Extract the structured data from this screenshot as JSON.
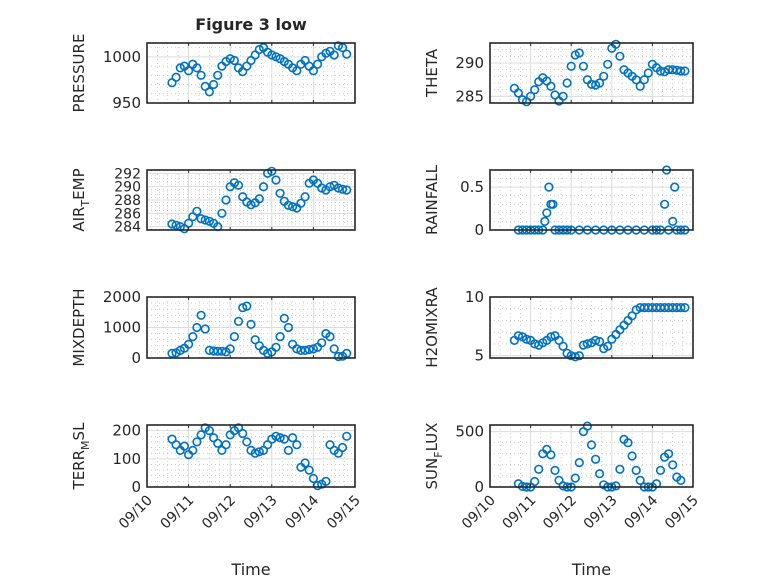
{
  "figure": {
    "title": "Figure 3 low"
  },
  "colors": {
    "marker": "#0072BD",
    "axis": "#262626",
    "grid": "#dcdcdc",
    "minor_grid": "#b0b0b0"
  },
  "chart_data": [
    {
      "type": "scatter",
      "name": "pressure",
      "ylabel": "PRESSURE",
      "title": "Figure 3 low",
      "xlabel": "",
      "xlim": [
        0,
        5
      ],
      "ylim": [
        950,
        1015
      ],
      "yticks": [
        950,
        1000
      ],
      "yticklabels": [
        "950",
        "1000"
      ],
      "xticklabels": [],
      "grid": "on",
      "x": [
        0.6,
        0.7,
        0.8,
        0.9,
        1.0,
        1.1,
        1.2,
        1.3,
        1.4,
        1.5,
        1.6,
        1.7,
        1.8,
        1.9,
        2.0,
        2.1,
        2.2,
        2.3,
        2.4,
        2.5,
        2.6,
        2.7,
        2.8,
        2.9,
        3.0,
        3.1,
        3.2,
        3.3,
        3.4,
        3.5,
        3.6,
        3.7,
        3.8,
        3.9,
        4.0,
        4.1,
        4.2,
        4.3,
        4.4,
        4.5,
        4.6,
        4.7,
        4.8
      ],
      "y": [
        972,
        978,
        988,
        990,
        985,
        992,
        988,
        980,
        968,
        962,
        970,
        980,
        990,
        995,
        998,
        996,
        988,
        984,
        990,
        996,
        1002,
        1008,
        1010,
        1005,
        1002,
        1000,
        998,
        995,
        992,
        988,
        985,
        992,
        996,
        990,
        985,
        992,
        1000,
        1004,
        1006,
        1002,
        1012,
        1010,
        1003
      ]
    },
    {
      "type": "scatter",
      "name": "theta",
      "ylabel": "THETA",
      "xlabel": "",
      "xlim": [
        0,
        5
      ],
      "ylim": [
        284,
        293
      ],
      "yticks": [
        285,
        290
      ],
      "yticklabels": [
        "285",
        "290"
      ],
      "xticklabels": [],
      "grid": "on",
      "x": [
        0.6,
        0.7,
        0.8,
        0.9,
        1.0,
        1.1,
        1.2,
        1.3,
        1.4,
        1.5,
        1.6,
        1.7,
        1.8,
        1.9,
        2.0,
        2.1,
        2.2,
        2.3,
        2.4,
        2.5,
        2.6,
        2.7,
        2.8,
        2.9,
        3.0,
        3.1,
        3.2,
        3.3,
        3.4,
        3.5,
        3.6,
        3.7,
        3.8,
        3.9,
        4.0,
        4.1,
        4.2,
        4.3,
        4.4,
        4.5,
        4.6,
        4.7,
        4.8
      ],
      "y": [
        286.2,
        285.5,
        284.5,
        284.2,
        285,
        286,
        287.2,
        287.8,
        287.3,
        286.5,
        285.2,
        284.3,
        285,
        287,
        289.5,
        291.2,
        291.5,
        289.5,
        287.5,
        286.8,
        286.7,
        287,
        288,
        289.8,
        292.2,
        292.8,
        291,
        289,
        288.5,
        288,
        287.5,
        286.5,
        287.5,
        288.5,
        289.8,
        289.3,
        288.8,
        288.7,
        289,
        289,
        288.9,
        288.8,
        288.8
      ]
    },
    {
      "type": "scatter",
      "name": "air_temp",
      "ylabel": "AIR_TEMP",
      "xlabel": "",
      "xlim": [
        0,
        5
      ],
      "ylim": [
        283.5,
        292.5
      ],
      "yticks": [
        284,
        286,
        288,
        290,
        292
      ],
      "yticklabels": [
        "284",
        "286",
        "288",
        "290",
        "292"
      ],
      "xticklabels": [],
      "grid": "on",
      "x": [
        0.6,
        0.7,
        0.8,
        0.9,
        1.0,
        1.1,
        1.2,
        1.3,
        1.4,
        1.5,
        1.6,
        1.7,
        1.8,
        1.9,
        2.0,
        2.1,
        2.2,
        2.3,
        2.4,
        2.5,
        2.6,
        2.7,
        2.8,
        2.9,
        3.0,
        3.1,
        3.2,
        3.3,
        3.4,
        3.5,
        3.6,
        3.7,
        3.8,
        3.9,
        4.0,
        4.1,
        4.2,
        4.3,
        4.4,
        4.5,
        4.6,
        4.7,
        4.8
      ],
      "y": [
        284.4,
        284.2,
        284,
        283.7,
        284.5,
        285.5,
        286.3,
        285.2,
        285,
        284.8,
        284.5,
        284,
        286,
        288,
        290,
        290.6,
        290.2,
        288.5,
        287.7,
        287.3,
        287.6,
        288.2,
        290,
        292,
        292.3,
        291,
        289,
        287.8,
        287.2,
        287,
        286.8,
        287.5,
        288.5,
        290.5,
        291,
        290.5,
        289.8,
        289.5,
        290,
        290.2,
        289.8,
        289.6,
        289.5
      ]
    },
    {
      "type": "scatter",
      "name": "rainfall",
      "ylabel": "RAINFALL",
      "xlabel": "",
      "xlim": [
        0,
        5
      ],
      "ylim": [
        0,
        0.7
      ],
      "yticks": [
        0,
        0.5
      ],
      "yticklabels": [
        "0",
        "0.5"
      ],
      "xticklabels": [],
      "grid": "on",
      "x": [
        0.7,
        0.8,
        0.9,
        1.0,
        1.1,
        1.2,
        1.3,
        1.35,
        1.4,
        1.45,
        1.5,
        1.55,
        1.6,
        1.7,
        1.8,
        1.9,
        2.0,
        2.2,
        2.4,
        2.6,
        2.8,
        3.0,
        3.2,
        3.4,
        3.6,
        3.8,
        4.0,
        4.1,
        4.2,
        4.3,
        4.35,
        4.4,
        4.5,
        4.55,
        4.6,
        4.7,
        4.8
      ],
      "y": [
        0,
        0,
        0,
        0,
        0,
        0,
        0,
        0.1,
        0.2,
        0.5,
        0.3,
        0.3,
        0,
        0,
        0,
        0,
        0,
        0,
        0,
        0,
        0,
        0,
        0,
        0,
        0,
        0,
        0,
        0,
        0,
        0.3,
        0.7,
        0,
        0.1,
        0.5,
        0,
        0,
        0
      ]
    },
    {
      "type": "scatter",
      "name": "mixdepth",
      "ylabel": "MIXDEPTH",
      "xlabel": "",
      "xlim": [
        0,
        5
      ],
      "ylim": [
        0,
        2000
      ],
      "yticks": [
        0,
        1000,
        2000
      ],
      "yticklabels": [
        "0",
        "1000",
        "2000"
      ],
      "xticklabels": [],
      "grid": "on",
      "x": [
        0.6,
        0.7,
        0.8,
        0.9,
        1.0,
        1.1,
        1.2,
        1.3,
        1.4,
        1.5,
        1.6,
        1.7,
        1.8,
        1.9,
        2.0,
        2.1,
        2.2,
        2.3,
        2.4,
        2.5,
        2.6,
        2.7,
        2.8,
        2.9,
        3.0,
        3.1,
        3.2,
        3.3,
        3.4,
        3.5,
        3.6,
        3.7,
        3.8,
        3.9,
        4.0,
        4.1,
        4.2,
        4.3,
        4.4,
        4.5,
        4.6,
        4.7,
        4.8
      ],
      "y": [
        150,
        170,
        250,
        320,
        450,
        700,
        1000,
        1400,
        950,
        250,
        230,
        220,
        220,
        200,
        300,
        700,
        1200,
        1650,
        1700,
        1100,
        600,
        400,
        250,
        150,
        200,
        350,
        700,
        1300,
        1000,
        450,
        300,
        250,
        250,
        280,
        300,
        350,
        500,
        800,
        700,
        300,
        50,
        60,
        150
      ]
    },
    {
      "type": "scatter",
      "name": "h2omixra",
      "ylabel": "H2OMIXRA",
      "xlabel": "",
      "xlim": [
        0,
        5
      ],
      "ylim": [
        4.8,
        10
      ],
      "yticks": [
        5,
        10
      ],
      "yticklabels": [
        "5",
        "10"
      ],
      "xticklabels": [],
      "grid": "on",
      "x": [
        0.6,
        0.7,
        0.8,
        0.9,
        1.0,
        1.1,
        1.2,
        1.3,
        1.4,
        1.5,
        1.6,
        1.7,
        1.8,
        1.9,
        2.0,
        2.1,
        2.2,
        2.3,
        2.4,
        2.5,
        2.6,
        2.7,
        2.8,
        2.9,
        3.0,
        3.1,
        3.2,
        3.3,
        3.4,
        3.5,
        3.6,
        3.7,
        3.8,
        3.9,
        4.0,
        4.1,
        4.2,
        4.3,
        4.4,
        4.5,
        4.6,
        4.7,
        4.8
      ],
      "y": [
        6.3,
        6.7,
        6.6,
        6.4,
        6.3,
        6.0,
        5.9,
        6.1,
        6.3,
        6.6,
        6.7,
        6.3,
        5.8,
        5.2,
        5.0,
        4.9,
        5.0,
        5.9,
        6.0,
        6.1,
        6.3,
        6.2,
        5.6,
        5.8,
        6.4,
        6.8,
        7.2,
        7.6,
        8.0,
        8.4,
        8.9,
        9.1,
        9.1,
        9.1,
        9.1,
        9.1,
        9.1,
        9.1,
        9.1,
        9.1,
        9.1,
        9.1,
        9.1
      ]
    },
    {
      "type": "scatter",
      "name": "terr_msl",
      "ylabel": "TERR_MSL",
      "xlabel": "Time",
      "xlim": [
        0,
        5
      ],
      "ylim": [
        0,
        220
      ],
      "yticks": [
        0,
        100,
        200
      ],
      "yticklabels": [
        "0",
        "100",
        "200"
      ],
      "xticks": [
        0,
        1,
        2,
        3,
        4,
        5
      ],
      "xticklabels": [
        "09/10",
        "09/11",
        "09/12",
        "09/13",
        "09/14",
        "09/15"
      ],
      "grid": "on",
      "x": [
        0.6,
        0.7,
        0.8,
        0.9,
        1.0,
        1.1,
        1.2,
        1.3,
        1.4,
        1.5,
        1.6,
        1.7,
        1.8,
        1.9,
        2.0,
        2.1,
        2.2,
        2.3,
        2.4,
        2.5,
        2.6,
        2.7,
        2.8,
        2.9,
        3.0,
        3.1,
        3.2,
        3.3,
        3.4,
        3.5,
        3.6,
        3.7,
        3.8,
        3.9,
        4.0,
        4.1,
        4.2,
        4.3,
        4.4,
        4.5,
        4.6,
        4.7,
        4.8
      ],
      "y": [
        170,
        150,
        130,
        145,
        115,
        130,
        160,
        185,
        210,
        200,
        175,
        155,
        130,
        150,
        185,
        200,
        210,
        190,
        160,
        130,
        120,
        125,
        130,
        150,
        170,
        180,
        175,
        170,
        130,
        175,
        150,
        70,
        85,
        60,
        30,
        5,
        10,
        20,
        150,
        130,
        120,
        140,
        180
      ]
    },
    {
      "type": "scatter",
      "name": "sun_flux",
      "ylabel": "SUN_FLUX",
      "xlabel": "Time",
      "xlim": [
        0,
        5
      ],
      "ylim": [
        0,
        560
      ],
      "yticks": [
        0,
        500
      ],
      "yticklabels": [
        "0",
        "500"
      ],
      "xticks": [
        0,
        1,
        2,
        3,
        4,
        5
      ],
      "xticklabels": [
        "09/10",
        "09/11",
        "09/12",
        "09/13",
        "09/14",
        "09/15"
      ],
      "grid": "on",
      "x": [
        0.7,
        0.8,
        0.9,
        1.0,
        1.1,
        1.2,
        1.3,
        1.4,
        1.5,
        1.6,
        1.7,
        1.8,
        1.9,
        2.0,
        2.1,
        2.2,
        2.3,
        2.4,
        2.5,
        2.6,
        2.7,
        2.8,
        2.9,
        3.0,
        3.1,
        3.2,
        3.3,
        3.4,
        3.5,
        3.6,
        3.7,
        3.8,
        3.9,
        4.0,
        4.1,
        4.2,
        4.3,
        4.4,
        4.5,
        4.6,
        4.7
      ],
      "y": [
        30,
        5,
        0,
        0,
        50,
        160,
        300,
        340,
        290,
        150,
        60,
        10,
        0,
        0,
        80,
        220,
        500,
        550,
        380,
        250,
        120,
        20,
        0,
        0,
        10,
        160,
        430,
        400,
        280,
        150,
        60,
        0,
        0,
        0,
        30,
        150,
        270,
        300,
        200,
        90,
        60
      ]
    }
  ]
}
